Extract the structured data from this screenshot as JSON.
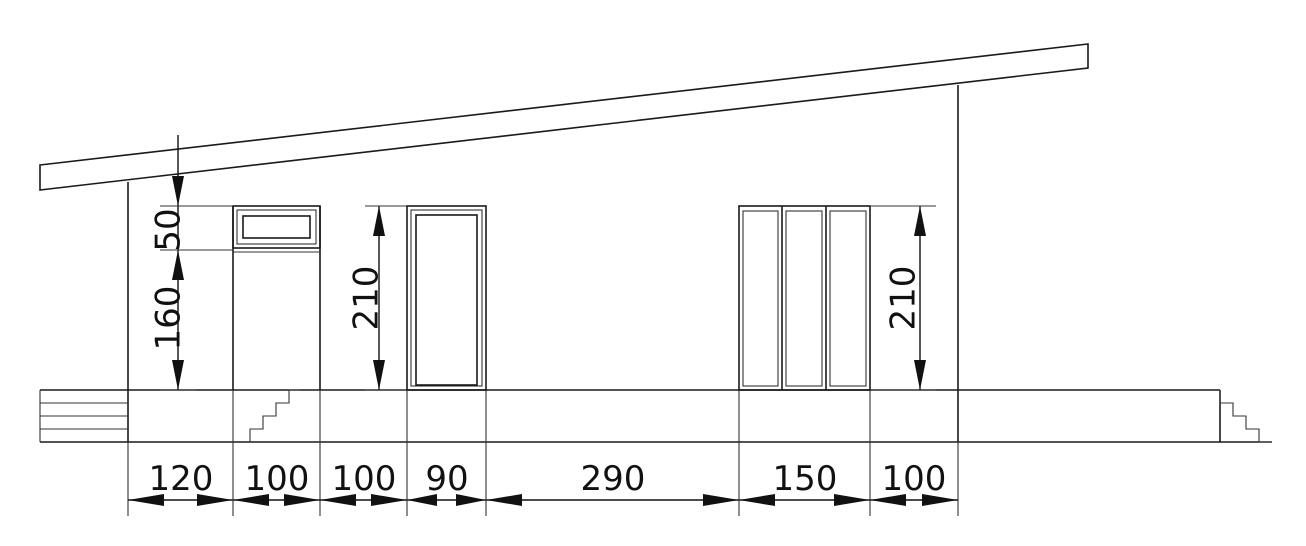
{
  "drawing": {
    "horizontal_dimensions": [
      "120",
      "100",
      "100",
      "90",
      "290",
      "150",
      "100"
    ],
    "vertical_dimensions": {
      "transom_height": "50",
      "sill_height": "160",
      "door_height": "210",
      "window_height": "210"
    },
    "line_color": "#1a1a1a"
  }
}
